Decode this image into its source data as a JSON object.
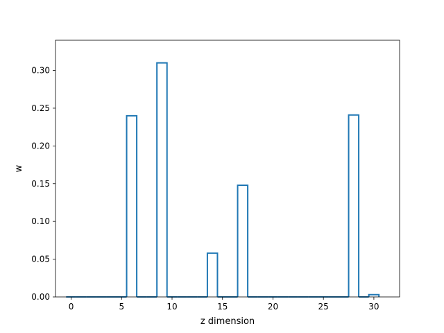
{
  "chart_data": {
    "type": "bar",
    "style": "step-outline",
    "title": "",
    "xlabel": "z dimension",
    "ylabel": "w",
    "xlim": [
      -1.55,
      32.55
    ],
    "ylim": [
      0.0,
      0.34
    ],
    "x_ticks": [
      0,
      5,
      10,
      15,
      20,
      25,
      30
    ],
    "y_ticks": [
      0.0,
      0.05,
      0.1,
      0.15,
      0.2,
      0.25,
      0.3
    ],
    "x_tick_labels": [
      "0",
      "5",
      "10",
      "15",
      "20",
      "25",
      "30"
    ],
    "y_tick_labels": [
      "0.00",
      "0.05",
      "0.10",
      "0.15",
      "0.20",
      "0.25",
      "0.30"
    ],
    "grid": false,
    "legend": "none",
    "categories": [
      0,
      1,
      2,
      3,
      4,
      5,
      6,
      7,
      8,
      9,
      10,
      11,
      12,
      13,
      14,
      15,
      16,
      17,
      18,
      19,
      20,
      21,
      22,
      23,
      24,
      25,
      26,
      27,
      28,
      29,
      30
    ],
    "values": [
      0,
      0,
      0,
      0,
      0,
      0,
      0.24,
      0,
      0,
      0.31,
      0,
      0,
      0,
      0,
      0.058,
      0,
      0,
      0.148,
      0,
      0,
      0,
      0,
      0,
      0,
      0,
      0,
      0,
      0,
      0.241,
      0,
      0.003
    ],
    "bar_width": 1.0,
    "color": "#1f77b4"
  }
}
